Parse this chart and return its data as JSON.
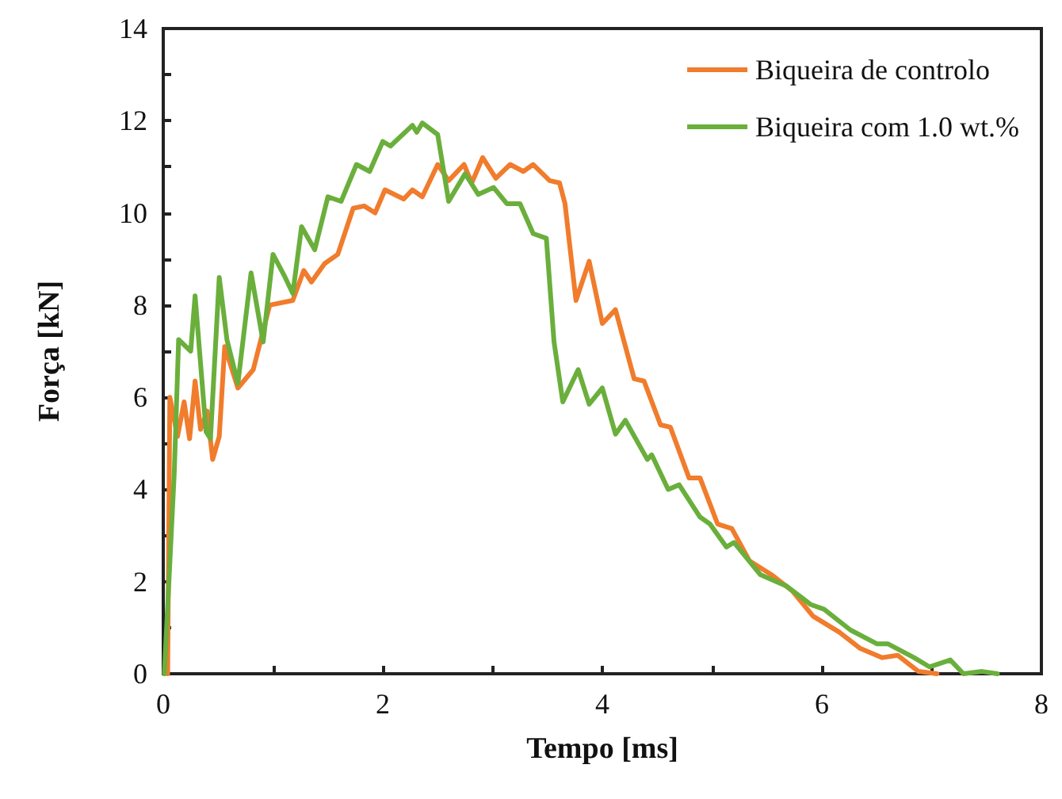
{
  "chart_data": {
    "type": "line",
    "xlabel": "Tempo [ms]",
    "ylabel": "Força [kN]",
    "xlim": [
      0,
      8
    ],
    "xticks": [
      0,
      {
        "value": 1,
        "label": null
      },
      2,
      {
        "value": 3,
        "label": null
      },
      4,
      {
        "value": 5,
        "label": null
      },
      6,
      {
        "value": 7,
        "label": null
      },
      8
    ],
    "ylim": [
      0,
      14
    ],
    "yticks": [
      0,
      {
        "value": 1,
        "label": null
      },
      2,
      {
        "value": 3,
        "label": null
      },
      4,
      {
        "value": 5,
        "label": null
      },
      6,
      {
        "value": 7,
        "label": null
      },
      8,
      {
        "value": 9,
        "label": null
      },
      10,
      {
        "value": 11,
        "label": null
      },
      12,
      {
        "value": 13,
        "label": null
      },
      14
    ],
    "grid": false,
    "legend": "top right",
    "marker": "none",
    "line_style": "solid",
    "series": [
      {
        "name": "Biqueira de controlo",
        "color": "#f07c2c",
        "x": [
          0.04,
          0.06,
          0.13,
          0.19,
          0.24,
          0.29,
          0.34,
          0.4,
          0.45,
          0.51,
          0.56,
          0.68,
          0.82,
          0.97,
          1.18,
          1.28,
          1.35,
          1.47,
          1.59,
          1.73,
          1.83,
          1.93,
          2.02,
          2.19,
          2.27,
          2.36,
          2.5,
          2.6,
          2.74,
          2.81,
          2.91,
          3.03,
          3.16,
          3.28,
          3.37,
          3.52,
          3.61,
          3.66,
          3.76,
          3.88,
          4.0,
          4.12,
          4.29,
          4.38,
          4.53,
          4.62,
          4.79,
          4.89,
          5.05,
          5.18,
          5.34,
          5.54,
          5.73,
          5.92,
          6.16,
          6.35,
          6.55,
          6.69,
          6.88,
          7.05
        ],
        "values": [
          0,
          6.0,
          5.15,
          5.9,
          5.1,
          6.35,
          5.3,
          5.7,
          4.65,
          5.15,
          7.1,
          6.2,
          6.6,
          8.0,
          8.1,
          8.75,
          8.5,
          8.9,
          9.1,
          10.1,
          10.15,
          10.0,
          10.5,
          10.3,
          10.5,
          10.35,
          11.05,
          10.7,
          11.05,
          10.65,
          11.2,
          10.75,
          11.05,
          10.9,
          11.05,
          10.7,
          10.65,
          10.2,
          8.1,
          8.95,
          7.6,
          7.9,
          6.4,
          6.35,
          5.4,
          5.35,
          4.25,
          4.25,
          3.25,
          3.15,
          2.45,
          2.15,
          1.8,
          1.25,
          0.9,
          0.55,
          0.35,
          0.4,
          0.05,
          0
        ]
      },
      {
        "name": "Biqueira com 1.0 wt.%",
        "color": "#6aaf3c",
        "x": [
          0.01,
          0.1,
          0.14,
          0.25,
          0.29,
          0.39,
          0.43,
          0.51,
          0.58,
          0.68,
          0.8,
          0.91,
          1.0,
          1.1,
          1.18,
          1.26,
          1.38,
          1.5,
          1.62,
          1.76,
          1.88,
          2.0,
          2.07,
          2.27,
          2.31,
          2.36,
          2.5,
          2.6,
          2.75,
          2.87,
          3.01,
          3.13,
          3.25,
          3.37,
          3.49,
          3.56,
          3.64,
          3.78,
          3.88,
          4.0,
          4.12,
          4.21,
          4.41,
          4.45,
          4.6,
          4.7,
          4.89,
          4.98,
          5.13,
          5.2,
          5.44,
          5.68,
          5.9,
          6.02,
          6.26,
          6.5,
          6.6,
          6.84,
          6.98,
          7.17,
          7.29,
          7.46,
          7.6
        ],
        "values": [
          0,
          4.35,
          7.25,
          7.0,
          8.2,
          5.25,
          5.1,
          8.6,
          7.25,
          6.3,
          8.7,
          7.2,
          9.1,
          8.65,
          8.25,
          9.7,
          9.2,
          10.35,
          10.25,
          11.05,
          10.9,
          11.55,
          11.45,
          11.9,
          11.75,
          11.95,
          11.7,
          10.25,
          10.85,
          10.4,
          10.55,
          10.2,
          10.2,
          9.55,
          9.45,
          7.2,
          5.9,
          6.6,
          5.85,
          6.2,
          5.2,
          5.5,
          4.65,
          4.75,
          4.0,
          4.1,
          3.4,
          3.25,
          2.75,
          2.85,
          2.15,
          1.9,
          1.5,
          1.4,
          0.95,
          0.65,
          0.65,
          0.35,
          0.15,
          0.3,
          0,
          0.05,
          0
        ]
      }
    ]
  }
}
